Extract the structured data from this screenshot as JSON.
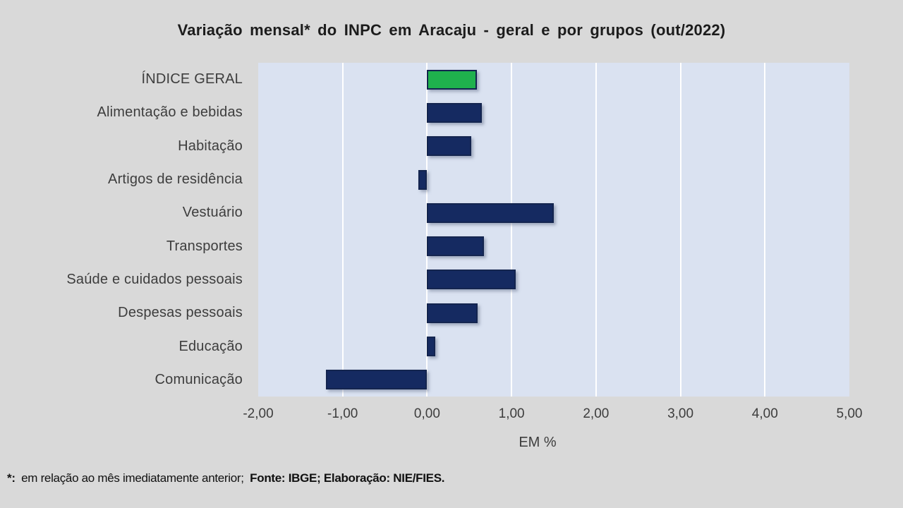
{
  "page": {
    "background_color": "#d9d9d9"
  },
  "chart_data": {
    "type": "bar",
    "orientation": "horizontal",
    "title": "Variação  mensal*  do INPC em Aracaju  - geral e por grupos (out/2022)",
    "categories": [
      "ÍNDICE GERAL",
      "Alimentação e bebidas",
      "Habitação",
      "Artigos de residência",
      "Vestuário",
      "Transportes",
      "Saúde e cuidados pessoais",
      "Despesas pessoais",
      "Educação",
      "Comunicação"
    ],
    "values": [
      0.59,
      0.65,
      0.52,
      -0.1,
      1.5,
      0.67,
      1.05,
      0.6,
      0.1,
      -1.2
    ],
    "xlabel": "EM %",
    "xlim": [
      -2,
      5
    ],
    "xticks": [
      -2,
      -1,
      0,
      1,
      2,
      3,
      4,
      5
    ],
    "xtick_labels": [
      "-2,00",
      "-1,00",
      "0,00",
      "1,00",
      "2,00",
      "3,00",
      "4,00",
      "5,00"
    ],
    "grid": true,
    "legend": "none",
    "highlight_index": 0,
    "colors": {
      "bar_default": "#152a61",
      "bar_highlight": "#1fb14d",
      "bar_border": "#14254f",
      "plot_background": "#dae2f1",
      "gridline": "#ffffff",
      "page_background": "#d9d9d9"
    }
  },
  "footnote": {
    "star": "*:",
    "text": "em relação ao mês imediatamente anterior;",
    "bold": "Fonte: IBGE; Elaboração:  NIE/FIES."
  }
}
